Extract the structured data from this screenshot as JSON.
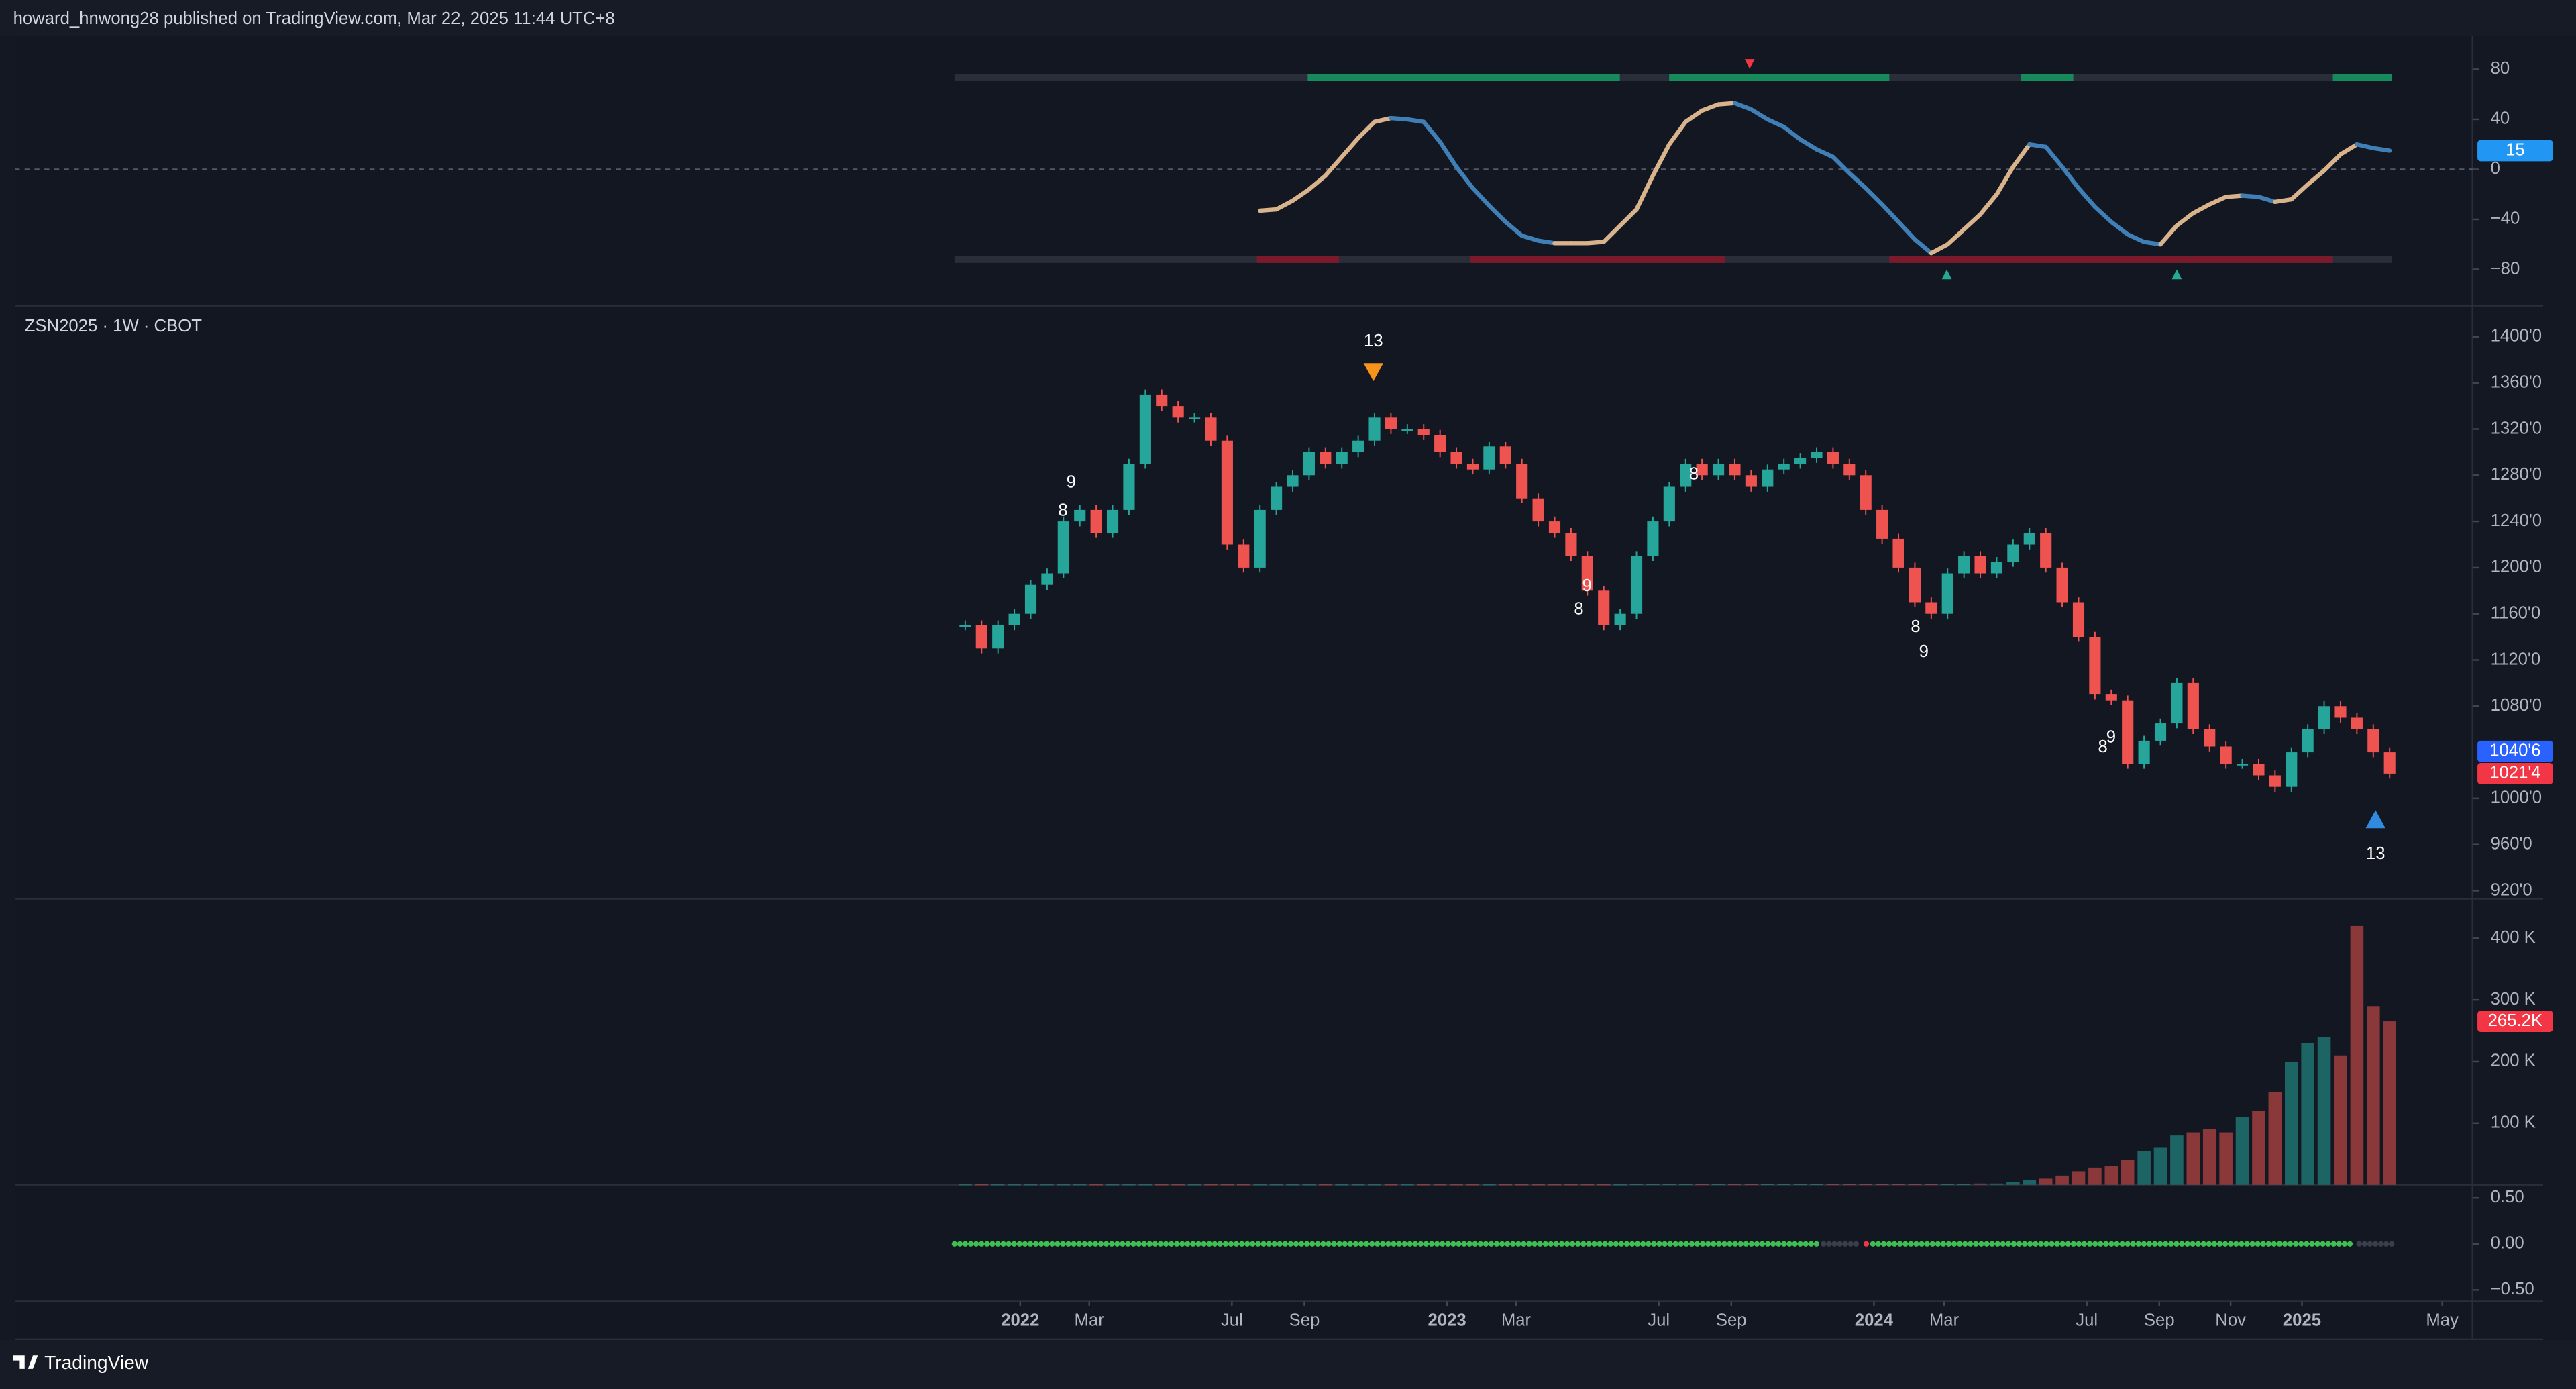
{
  "header": {
    "text": "howard_hnwong28 published on TradingView.com, Mar 22, 2025 11:44 UTC+8"
  },
  "footer": {
    "brand": "TradingView"
  },
  "chart_data": {
    "type": "candlestick",
    "symbol": "ZSN2025 · 1W · CBOT",
    "colors": {
      "up": "#26a69a",
      "down": "#ef5350"
    },
    "x": [
      "2021-11-15",
      "2021-11-29",
      "2021-12-13",
      "2021-12-27",
      "2022-01-10",
      "2022-01-24",
      "2022-02-07",
      "2022-02-21",
      "2022-03-07",
      "2022-03-21",
      "2022-04-04",
      "2022-04-18",
      "2022-05-02",
      "2022-05-16",
      "2022-05-30",
      "2022-06-13",
      "2022-06-27",
      "2022-07-11",
      "2022-07-25",
      "2022-08-08",
      "2022-08-22",
      "2022-09-05",
      "2022-09-19",
      "2022-10-03",
      "2022-10-17",
      "2022-10-31",
      "2022-11-14",
      "2022-11-28",
      "2022-12-12",
      "2022-12-26",
      "2023-01-09",
      "2023-01-23",
      "2023-02-06",
      "2023-02-20",
      "2023-03-06",
      "2023-03-20",
      "2023-04-03",
      "2023-04-17",
      "2023-05-01",
      "2023-05-15",
      "2023-05-29",
      "2023-06-12",
      "2023-06-26",
      "2023-07-10",
      "2023-07-24",
      "2023-08-07",
      "2023-08-21",
      "2023-09-04",
      "2023-09-18",
      "2023-10-02",
      "2023-10-16",
      "2023-10-30",
      "2023-11-13",
      "2023-11-27",
      "2023-12-11",
      "2023-12-25",
      "2024-01-08",
      "2024-01-22",
      "2024-02-05",
      "2024-02-19",
      "2024-03-04",
      "2024-03-18",
      "2024-04-01",
      "2024-04-15",
      "2024-04-29",
      "2024-05-13",
      "2024-05-27",
      "2024-06-10",
      "2024-06-24",
      "2024-07-08",
      "2024-07-22",
      "2024-08-05",
      "2024-08-19",
      "2024-09-02",
      "2024-09-16",
      "2024-09-30",
      "2024-10-14",
      "2024-10-28",
      "2024-11-11",
      "2024-11-25",
      "2024-12-09",
      "2024-12-23",
      "2025-01-06",
      "2025-01-20",
      "2025-02-03",
      "2025-02-17",
      "2025-03-03",
      "2025-03-17"
    ],
    "close": [
      1150,
      1130,
      1150,
      1160,
      1185,
      1195,
      1240,
      1250,
      1230,
      1250,
      1290,
      1350,
      1340,
      1330,
      1330,
      1310,
      1220,
      1200,
      1250,
      1270,
      1280,
      1300,
      1290,
      1300,
      1310,
      1330,
      1320,
      1320,
      1315,
      1300,
      1290,
      1285,
      1305,
      1290,
      1260,
      1240,
      1230,
      1210,
      1180,
      1150,
      1160,
      1210,
      1240,
      1270,
      1290,
      1280,
      1290,
      1280,
      1270,
      1285,
      1290,
      1295,
      1300,
      1290,
      1280,
      1250,
      1225,
      1200,
      1170,
      1160,
      1195,
      1210,
      1195,
      1205,
      1220,
      1230,
      1200,
      1170,
      1140,
      1090,
      1085,
      1030,
      1050,
      1065,
      1100,
      1060,
      1045,
      1030,
      1030,
      1020,
      1010,
      1040,
      1060,
      1080,
      1070,
      1060,
      1040,
      1021.5
    ],
    "ylim": [
      913,
      1427
    ],
    "yticks": [
      {
        "value": 1400,
        "label": "1400'0"
      },
      {
        "value": 1360,
        "label": "1360'0"
      },
      {
        "value": 1320,
        "label": "1320'0"
      },
      {
        "value": 1280,
        "label": "1280'0"
      },
      {
        "value": 1240,
        "label": "1240'0"
      },
      {
        "value": 1200,
        "label": "1200'0"
      },
      {
        "value": 1160,
        "label": "1160'0"
      },
      {
        "value": 1120,
        "label": "1120'0"
      },
      {
        "value": 1080,
        "label": "1080'0"
      },
      {
        "value": 1000,
        "label": "1000'0"
      },
      {
        "value": 960,
        "label": "960'0"
      },
      {
        "value": 920,
        "label": "920'0"
      }
    ],
    "xticks": [
      {
        "value": "2022-01-01",
        "label": "2022"
      },
      {
        "value": "2022-03-01",
        "label": "Mar"
      },
      {
        "value": "2022-07-01",
        "label": "Jul"
      },
      {
        "value": "2022-09-01",
        "label": "Sep"
      },
      {
        "value": "2023-01-01",
        "label": "2023"
      },
      {
        "value": "2023-03-01",
        "label": "Mar"
      },
      {
        "value": "2023-07-01",
        "label": "Jul"
      },
      {
        "value": "2023-09-01",
        "label": "Sep"
      },
      {
        "value": "2024-01-01",
        "label": "2024"
      },
      {
        "value": "2024-03-01",
        "label": "Mar"
      },
      {
        "value": "2024-07-01",
        "label": "Jul"
      },
      {
        "value": "2024-09-01",
        "label": "Sep"
      },
      {
        "value": "2024-11-01",
        "label": "Nov"
      },
      {
        "value": "2025-01-01",
        "label": "2025"
      },
      {
        "value": "2025-05-01",
        "label": "May"
      }
    ],
    "price_badges": [
      {
        "value": 1040.75,
        "label": "1040'6",
        "color": "#2962ff"
      },
      {
        "value": 1021.5,
        "label": "1021'4",
        "color": "#f23645"
      }
    ],
    "annotations": [
      "13",
      "9",
      "8",
      "9",
      "8",
      "8",
      "8",
      "9",
      "9",
      "8",
      "13"
    ],
    "volume": {
      "values": [
        500,
        500,
        500,
        500,
        500,
        500,
        500,
        500,
        500,
        500,
        500,
        500,
        500,
        500,
        500,
        500,
        500,
        500,
        500,
        500,
        500,
        500,
        500,
        500,
        500,
        500,
        500,
        500,
        500,
        500,
        500,
        500,
        500,
        500,
        500,
        500,
        500,
        500,
        500,
        500,
        500,
        1000,
        1000,
        1000,
        1000,
        1000,
        1000,
        1000,
        1000,
        1000,
        1000,
        1000,
        1000,
        1000,
        1000,
        1000,
        1000,
        1000,
        1000,
        1000,
        1000,
        1000,
        2000,
        2000,
        5000,
        8000,
        10000,
        15000,
        22000,
        28000,
        30000,
        40000,
        55000,
        60000,
        80000,
        85000,
        90000,
        85000,
        110000,
        120000,
        150000,
        200000,
        230000,
        240000,
        210000,
        420000,
        290000,
        265200
      ],
      "ylim": [
        0,
        464000
      ],
      "yticks": [
        {
          "value": 400000,
          "label": "400 K"
        },
        {
          "value": 300000,
          "label": "300 K"
        },
        {
          "value": 200000,
          "label": "200 K"
        },
        {
          "value": 100000,
          "label": "100 K"
        }
      ],
      "badge": {
        "value": 265200,
        "label": "265.2K",
        "color": "#f23645"
      }
    },
    "oscillator": {
      "colors": {
        "rising": "#d9b38c",
        "falling": "#3f7fb5"
      },
      "values": [
        null,
        null,
        null,
        null,
        null,
        null,
        null,
        null,
        null,
        null,
        null,
        null,
        null,
        null,
        null,
        null,
        null,
        null,
        -33,
        -32,
        -25,
        -16,
        -5,
        10,
        25,
        38,
        41,
        40,
        38,
        22,
        2,
        -15,
        -29,
        -42,
        -53,
        -57,
        -59,
        -59,
        -59,
        -58,
        -45,
        -32,
        -5,
        20,
        38,
        47,
        52,
        53,
        48,
        40,
        34,
        24,
        16,
        10,
        -3,
        -15,
        -28,
        -42,
        -56,
        -67,
        -60,
        -48,
        -36,
        -20,
        2,
        20,
        18,
        2,
        -15,
        -30,
        -42,
        -52,
        -58,
        -60,
        -45,
        -35,
        -28,
        -22,
        -21,
        -22,
        -26,
        -24,
        -12,
        -1,
        12,
        20,
        17,
        15
      ],
      "ylim": [
        -109,
        106.6
      ],
      "yticks": [
        80,
        40,
        0,
        {
          "value": -40,
          "label": "−40"
        },
        {
          "value": -80,
          "label": "−80"
        }
      ],
      "badge": {
        "value": 15,
        "label": "15",
        "color": "#2196f3"
      }
    },
    "bottom": {
      "ylim": [
        -0.625,
        0.643
      ],
      "yticks": [
        {
          "value": 0.5,
          "label": "0.50"
        },
        {
          "value": 0,
          "label": "0.00"
        },
        {
          "value": -0.5,
          "label": "−0.50"
        }
      ]
    }
  }
}
